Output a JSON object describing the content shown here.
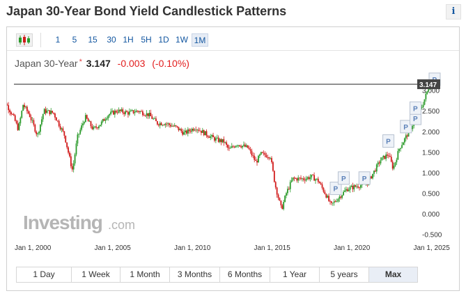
{
  "page": {
    "title": "Japan 30-Year Bond Yield Candlestick Patterns",
    "info_icon": "i"
  },
  "toolbar": {
    "chart_type_icon": "candlestick-icon",
    "timeframes": [
      "1",
      "5",
      "15",
      "30",
      "1H",
      "5H",
      "1D",
      "1W",
      "1M"
    ],
    "active_timeframe": "1M"
  },
  "quote": {
    "name": "Japan 30-Year",
    "star": "*",
    "price": "3.147",
    "change": "-0.003",
    "change_pct": "(-0.10%)"
  },
  "ranges": [
    "1 Day",
    "1 Week",
    "1 Month",
    "3 Months",
    "6 Months",
    "1 Year",
    "5 years",
    "Max"
  ],
  "active_range": "Max",
  "logo": {
    "main": "Investing",
    "suffix": ".com"
  },
  "colors": {
    "up": "#2a9a2a",
    "down": "#d11a1a",
    "link": "#1256a0",
    "hline": "#222222",
    "price_tag": "#444444"
  },
  "chart_data": {
    "type": "candlestick",
    "yticks": [
      "3.000",
      "2.500",
      "2.000",
      "1.500",
      "1.000",
      "0.500",
      "0.000",
      "-0.500"
    ],
    "xticks": [
      "Jan 1, 2000",
      "Jan 1, 2005",
      "Jan 1, 2010",
      "Jan 1, 2015",
      "Jan 1, 2020",
      "Jan 1, 2025"
    ],
    "ylim": [
      -0.5,
      3.25
    ],
    "current_price_label": "3.147",
    "current_price": 3.147,
    "marker_label": "P",
    "markers": [
      {
        "year": 2020.0,
        "value": 0.6
      },
      {
        "year": 2020.5,
        "value": 0.85
      },
      {
        "year": 2021.8,
        "value": 0.85
      },
      {
        "year": 2023.3,
        "value": 1.75
      },
      {
        "year": 2024.4,
        "value": 2.1
      },
      {
        "year": 2025.0,
        "value": 2.3
      },
      {
        "year": 2025.0,
        "value": 2.55
      },
      {
        "year": 2026.2,
        "value": 3.25
      }
    ],
    "anchors": [
      [
        1998.9,
        2.8
      ],
      [
        1999.3,
        2.7
      ],
      [
        1999.8,
        2.35
      ],
      [
        2000.1,
        2.05
      ],
      [
        2000.4,
        2.65
      ],
      [
        2000.8,
        2.4
      ],
      [
        2001.3,
        1.9
      ],
      [
        2001.7,
        2.5
      ],
      [
        2002.3,
        2.45
      ],
      [
        2003.0,
        1.9
      ],
      [
        2003.4,
        1.2
      ],
      [
        2003.5,
        1.05
      ],
      [
        2003.8,
        1.85
      ],
      [
        2004.3,
        2.35
      ],
      [
        2004.8,
        2.05
      ],
      [
        2005.3,
        2.2
      ],
      [
        2005.7,
        2.4
      ],
      [
        2006.3,
        2.5
      ],
      [
        2007.0,
        2.45
      ],
      [
        2007.6,
        2.5
      ],
      [
        2008.3,
        2.4
      ],
      [
        2008.8,
        2.2
      ],
      [
        2009.3,
        2.2
      ],
      [
        2010.0,
        2.1
      ],
      [
        2010.5,
        1.95
      ],
      [
        2011.2,
        2.1
      ],
      [
        2011.8,
        1.95
      ],
      [
        2012.5,
        1.8
      ],
      [
        2013.0,
        1.75
      ],
      [
        2013.3,
        1.55
      ],
      [
        2013.8,
        1.7
      ],
      [
        2014.5,
        1.6
      ],
      [
        2015.0,
        1.25
      ],
      [
        2015.3,
        1.45
      ],
      [
        2015.9,
        1.4
      ],
      [
        2016.2,
        0.7
      ],
      [
        2016.6,
        0.1
      ],
      [
        2016.9,
        0.5
      ],
      [
        2017.3,
        0.85
      ],
      [
        2018.0,
        0.85
      ],
      [
        2018.5,
        0.9
      ],
      [
        2018.9,
        0.8
      ],
      [
        2019.4,
        0.45
      ],
      [
        2019.7,
        0.2
      ],
      [
        2020.2,
        0.4
      ],
      [
        2020.7,
        0.6
      ],
      [
        2021.3,
        0.67
      ],
      [
        2022.0,
        0.75
      ],
      [
        2022.8,
        1.3
      ],
      [
        2023.3,
        1.45
      ],
      [
        2023.6,
        1.1
      ],
      [
        2024.0,
        1.6
      ],
      [
        2024.6,
        2.0
      ],
      [
        2025.0,
        2.3
      ],
      [
        2025.4,
        2.6
      ],
      [
        2025.9,
        3.15
      ]
    ]
  }
}
